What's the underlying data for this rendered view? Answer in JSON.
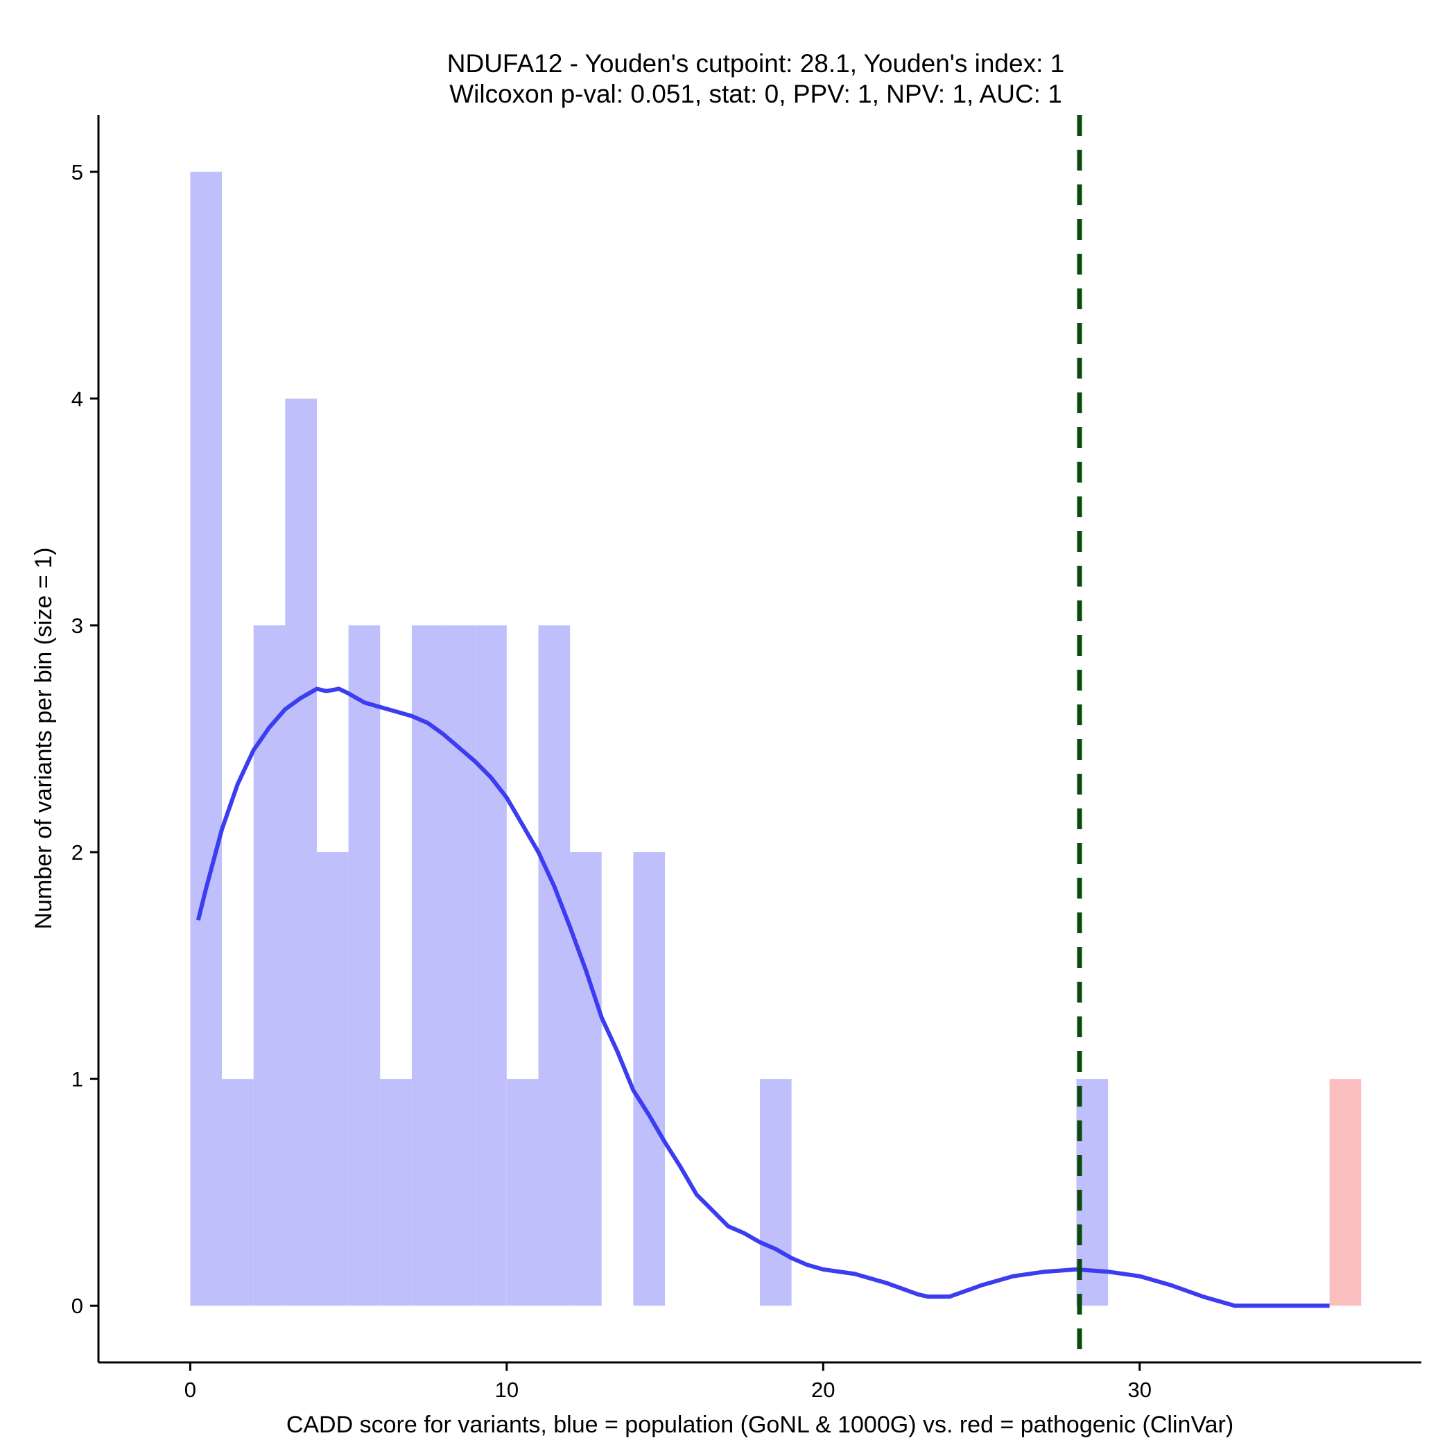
{
  "chart_data": {
    "type": "bar",
    "title": "NDUFA12 - Youden's cutpoint: 28.1, Youden's index: 1",
    "subtitle": "Wilcoxon p-val: 0.051, stat: 0, PPV: 1, NPV: 1, AUC: 1",
    "xlabel": "CADD score for variants, blue = population (GoNL & 1000G) vs. red = pathogenic (ClinVar)",
    "ylabel": "Number of variants per bin (size = 1)",
    "xlim": [
      -2.9,
      38.9
    ],
    "ylim": [
      -0.25,
      5.25
    ],
    "xticks": [
      0,
      10,
      20,
      30
    ],
    "yticks": [
      0,
      1,
      2,
      3,
      4,
      5
    ],
    "bin_width": 1,
    "colors": {
      "population": "#bfbffb",
      "pathogenic": "#fcbfbf",
      "density": "#3c3cf0",
      "cutpoint": "#0a4a0a"
    },
    "series": [
      {
        "name": "population",
        "bins": [
          {
            "x": 0,
            "count": 5
          },
          {
            "x": 1,
            "count": 1
          },
          {
            "x": 2,
            "count": 3
          },
          {
            "x": 3,
            "count": 4
          },
          {
            "x": 4,
            "count": 2
          },
          {
            "x": 5,
            "count": 3
          },
          {
            "x": 6,
            "count": 1
          },
          {
            "x": 7,
            "count": 3
          },
          {
            "x": 8,
            "count": 3
          },
          {
            "x": 9,
            "count": 3
          },
          {
            "x": 10,
            "count": 1
          },
          {
            "x": 11,
            "count": 3
          },
          {
            "x": 12,
            "count": 2
          },
          {
            "x": 14,
            "count": 2
          },
          {
            "x": 18,
            "count": 1
          },
          {
            "x": 28,
            "count": 1
          }
        ]
      },
      {
        "name": "pathogenic",
        "bins": [
          {
            "x": 36,
            "count": 1
          }
        ]
      }
    ],
    "density_curve": [
      [
        0.25,
        1.7
      ],
      [
        0.5,
        1.84
      ],
      [
        1.0,
        2.1
      ],
      [
        1.5,
        2.3
      ],
      [
        2.0,
        2.45
      ],
      [
        2.5,
        2.55
      ],
      [
        3.0,
        2.63
      ],
      [
        3.5,
        2.68
      ],
      [
        4.0,
        2.72
      ],
      [
        4.3,
        2.71
      ],
      [
        4.7,
        2.72
      ],
      [
        5.0,
        2.7
      ],
      [
        5.5,
        2.66
      ],
      [
        6.0,
        2.64
      ],
      [
        6.5,
        2.62
      ],
      [
        7.0,
        2.6
      ],
      [
        7.5,
        2.57
      ],
      [
        8.0,
        2.52
      ],
      [
        8.5,
        2.46
      ],
      [
        9.0,
        2.4
      ],
      [
        9.5,
        2.33
      ],
      [
        10.0,
        2.24
      ],
      [
        10.5,
        2.12
      ],
      [
        11.0,
        2.0
      ],
      [
        11.5,
        1.85
      ],
      [
        12.0,
        1.67
      ],
      [
        12.5,
        1.48
      ],
      [
        13.0,
        1.27
      ],
      [
        13.5,
        1.12
      ],
      [
        14.0,
        0.95
      ],
      [
        14.5,
        0.84
      ],
      [
        15.0,
        0.72
      ],
      [
        15.5,
        0.61
      ],
      [
        16.0,
        0.49
      ],
      [
        16.5,
        0.42
      ],
      [
        17.0,
        0.35
      ],
      [
        17.5,
        0.32
      ],
      [
        18.0,
        0.28
      ],
      [
        18.5,
        0.25
      ],
      [
        19.0,
        0.21
      ],
      [
        19.5,
        0.18
      ],
      [
        20.0,
        0.16
      ],
      [
        21.0,
        0.14
      ],
      [
        22.0,
        0.1
      ],
      [
        23.0,
        0.05
      ],
      [
        23.3,
        0.04
      ],
      [
        24.0,
        0.04
      ],
      [
        25.0,
        0.09
      ],
      [
        26.0,
        0.13
      ],
      [
        27.0,
        0.15
      ],
      [
        28.0,
        0.16
      ],
      [
        29.0,
        0.15
      ],
      [
        30.0,
        0.13
      ],
      [
        31.0,
        0.09
      ],
      [
        32.0,
        0.04
      ],
      [
        33.0,
        0.0
      ],
      [
        36.0,
        0.0
      ]
    ],
    "cutpoint": 28.1,
    "grid": false,
    "legend": "none"
  }
}
